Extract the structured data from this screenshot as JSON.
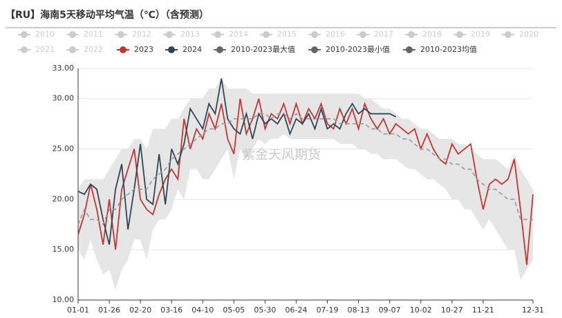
{
  "chart_data": {
    "type": "line",
    "title": "【RU】海南5天移动平均气温（℃）（含预测）",
    "watermark": "紫金天风期货",
    "legend_inactive": {
      "color": "#cccccc",
      "names": [
        "2010",
        "2011",
        "2012",
        "2013",
        "2014",
        "2015",
        "2016",
        "2017",
        "2018",
        "2019",
        "2020",
        "2021",
        "2022"
      ]
    },
    "categories": [
      "01-01",
      null,
      null,
      null,
      null,
      "01-26",
      null,
      null,
      null,
      null,
      "02-20",
      null,
      null,
      null,
      null,
      "03-16",
      null,
      null,
      null,
      null,
      "04-10",
      null,
      null,
      null,
      null,
      "05-05",
      null,
      null,
      null,
      null,
      "05-30",
      null,
      null,
      null,
      null,
      "06-24",
      null,
      null,
      null,
      null,
      "07-19",
      null,
      null,
      null,
      null,
      "08-13",
      null,
      null,
      null,
      null,
      "09-07",
      null,
      null,
      null,
      null,
      "10-02",
      null,
      null,
      null,
      null,
      "10-27",
      null,
      null,
      null,
      null,
      "11-21",
      null,
      null,
      null,
      null,
      null,
      null,
      null,
      "12-31"
    ],
    "ylim": [
      10,
      33
    ],
    "yticks": [
      {
        "value": 10,
        "label": "10.00"
      },
      {
        "value": 15,
        "label": "15.00"
      },
      {
        "value": 20,
        "label": "20.00"
      },
      {
        "value": 25,
        "label": "25.00"
      },
      {
        "value": 30,
        "label": "30.00"
      },
      {
        "value": 33,
        "label": "33.00"
      }
    ],
    "grid": true,
    "band_fill": "#e6e6e6",
    "series": [
      {
        "name": "2023",
        "color": "#c23531",
        "values": [
          16.5,
          18.5,
          21.5,
          19,
          15.5,
          20,
          15,
          21,
          23,
          25,
          20,
          19,
          18.5,
          20.5,
          22,
          23,
          22,
          28,
          25,
          27,
          26,
          28.5,
          27,
          29.5,
          26,
          24.5,
          30,
          26.5,
          28,
          30,
          27,
          28.5,
          28,
          29.5,
          27.5,
          29.5,
          27.5,
          29,
          28,
          29.5,
          27.5,
          27,
          29,
          27.5,
          29,
          27,
          29.5,
          28,
          27,
          28,
          26.5,
          27.5,
          27,
          26.5,
          27,
          25,
          26.5,
          25,
          24,
          23.5,
          25.5,
          24.5,
          25,
          25.5,
          22,
          19,
          21.5,
          22,
          21.5,
          22,
          24,
          19,
          13.5,
          20.5
        ]
      },
      {
        "name": "2024",
        "color": "#2f4554",
        "values": [
          20.8,
          20.5,
          21.5,
          21,
          18,
          15.5,
          21,
          23.5,
          17,
          21,
          25.5,
          20,
          19.5,
          24.5,
          19.5,
          25,
          23.5,
          25.5,
          29,
          28,
          27,
          29.5,
          28.5,
          32,
          28,
          27,
          26.5,
          28.5,
          26,
          28.5,
          27.5,
          28,
          27.5,
          28.5,
          26.5,
          28,
          27.5,
          28.5,
          27,
          29,
          27,
          27.5,
          27,
          28.5,
          29.5,
          28.5,
          29,
          28.5,
          28.5,
          28.5,
          28.5,
          28.2,
          null,
          null,
          null,
          null,
          null,
          null,
          null,
          null,
          null,
          null,
          null,
          null,
          null,
          null,
          null,
          null,
          null,
          null,
          null,
          null,
          null,
          null
        ]
      },
      {
        "name": "2010-2023最大值",
        "color": "#666666",
        "band": "upper",
        "values": [
          21,
          22,
          22,
          22,
          22,
          23,
          24,
          25,
          25,
          26,
          26,
          25,
          27,
          27,
          27,
          28,
          28,
          29,
          30,
          30,
          30,
          31,
          31,
          32,
          31,
          31,
          31,
          31,
          30.5,
          30.5,
          30.5,
          30.5,
          30.5,
          30.5,
          30.5,
          30.5,
          30.5,
          30.5,
          30.5,
          30.5,
          30.5,
          30.5,
          30.5,
          30.5,
          30.5,
          30.5,
          30,
          30,
          29.5,
          29,
          29,
          28.5,
          28,
          28,
          27.5,
          27,
          27,
          26.5,
          26,
          26,
          26,
          25.5,
          25.5,
          25,
          24.5,
          24,
          24,
          24,
          23.5,
          23,
          24.5,
          23,
          22,
          21
        ]
      },
      {
        "name": "2010-2023最小值",
        "color": "#666666",
        "band": "lower",
        "values": [
          15,
          14,
          16,
          14,
          12.5,
          13,
          11,
          13,
          14,
          16,
          16,
          14,
          17,
          18,
          18,
          19,
          21,
          20,
          23,
          23,
          22,
          22,
          23,
          24,
          25,
          22,
          25,
          24,
          25,
          26,
          25.5,
          26,
          26,
          26.5,
          26,
          26,
          26,
          26,
          26,
          26,
          26,
          26,
          25.5,
          25.5,
          25.5,
          25,
          25,
          24.5,
          24.5,
          24,
          24,
          24,
          23.5,
          23,
          23,
          22.5,
          22,
          22,
          21.5,
          21,
          20,
          20,
          19,
          19,
          18,
          17,
          18,
          17,
          16,
          15,
          15,
          12,
          13,
          14
        ]
      },
      {
        "name": "2010-2023均值",
        "color": "#666666",
        "line_color": "#999999",
        "dashed": true,
        "values": [
          17.5,
          19,
          18,
          18,
          17.5,
          19,
          19,
          20,
          20.5,
          21,
          21,
          21,
          22,
          22.5,
          23,
          24,
          24.5,
          25,
          25.5,
          26,
          26.5,
          27,
          27,
          27.5,
          27.5,
          28,
          28,
          28,
          28,
          28.5,
          28.5,
          28,
          28.5,
          28.5,
          28,
          28.5,
          28,
          28,
          28,
          28,
          28,
          28,
          27.5,
          27.5,
          27.5,
          27.5,
          27.5,
          27,
          27,
          26.5,
          26.5,
          26.5,
          26,
          26,
          25.5,
          25,
          25,
          24.5,
          24,
          24,
          23.5,
          23.5,
          23,
          23,
          22,
          21.5,
          21,
          21,
          20.5,
          20,
          20,
          18,
          18,
          18
        ]
      }
    ]
  }
}
